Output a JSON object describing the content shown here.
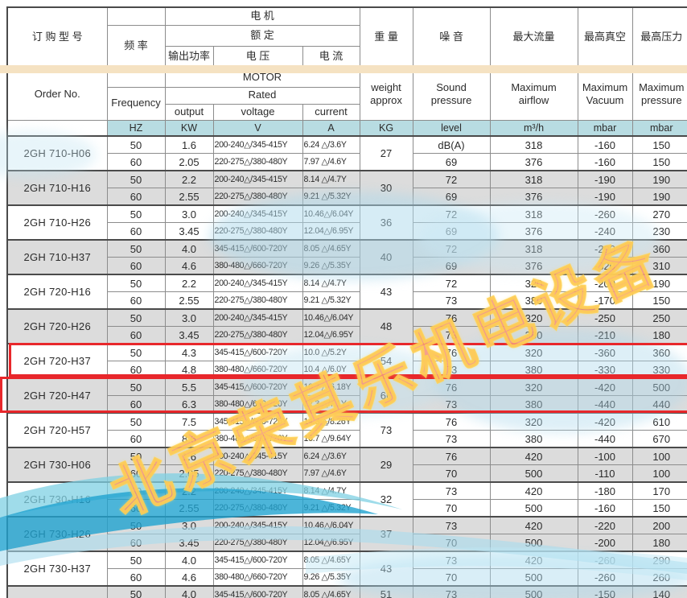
{
  "header": {
    "cn": {
      "order": "订 购 型 号",
      "freq": "频  率",
      "motor": "电   机",
      "rated": "额  定",
      "output": "输出功率",
      "voltage": "电  压",
      "current": "电  流",
      "weight": "重  量",
      "noise": "噪  音",
      "airflow": "最大流量",
      "vacuum": "最高真空",
      "pressure": "最高压力"
    },
    "en": {
      "order": "Order No.",
      "freq": "Frequency",
      "motor": "MOTOR",
      "rated": "Rated",
      "output": "output",
      "voltage": "voltage",
      "current": "current",
      "weight": "weight\napprox",
      "noise": "Sound\npressure",
      "airflow": "Maximum\nairflow",
      "vacuum": "Maximum\nVacuum",
      "pressure": "Maximum\npressure"
    },
    "units": {
      "hz": "HZ",
      "kw": "KW",
      "v": "V",
      "a": "A",
      "kg": "KG",
      "level": "level",
      "flow": "m³/h",
      "vacuum": "mbar",
      "pressure": "mbar"
    }
  },
  "models": [
    {
      "order": "2GH 710-H06",
      "weight": "27",
      "shaded": false,
      "highlighted": false,
      "rows": [
        {
          "hz": "50",
          "kw": "1.6",
          "voltage": "200-240△/345-415Y",
          "current": "6.24 △/3.6Y",
          "sound": "dB(A)",
          "airflow": "318",
          "vacuum": "-160",
          "pressure": "150"
        },
        {
          "hz": "60",
          "kw": "2.05",
          "voltage": "220-275△/380-480Y",
          "current": "7.97 △/4.6Y",
          "sound": "69",
          "airflow": "376",
          "vacuum": "-160",
          "pressure": "150"
        }
      ]
    },
    {
      "order": "2GH 710-H16",
      "weight": "30",
      "shaded": true,
      "highlighted": false,
      "rows": [
        {
          "hz": "50",
          "kw": "2.2",
          "voltage": "200-240△/345-415Y",
          "current": "8.14 △/4.7Y",
          "sound": "72",
          "airflow": "318",
          "vacuum": "-190",
          "pressure": "190"
        },
        {
          "hz": "60",
          "kw": "2.55",
          "voltage": "220-275△/380-480Y",
          "current": "9.21 △/5.32Y",
          "sound": "69",
          "airflow": "376",
          "vacuum": "-190",
          "pressure": "190"
        }
      ]
    },
    {
      "order": "2GH 710-H26",
      "weight": "36",
      "shaded": false,
      "highlighted": false,
      "rows": [
        {
          "hz": "50",
          "kw": "3.0",
          "voltage": "200-240△/345-415Y",
          "current": "10.46△/6.04Y",
          "sound": "72",
          "airflow": "318",
          "vacuum": "-260",
          "pressure": "270"
        },
        {
          "hz": "60",
          "kw": "3.45",
          "voltage": "220-275△/380-480Y",
          "current": "12.04△/6.95Y",
          "sound": "69",
          "airflow": "376",
          "vacuum": "-240",
          "pressure": "230"
        }
      ]
    },
    {
      "order": "2GH 710-H37",
      "weight": "40",
      "shaded": true,
      "highlighted": false,
      "rows": [
        {
          "hz": "50",
          "kw": "4.0",
          "voltage": "345-415△/600-720Y",
          "current": "8.05 △/4.65Y",
          "sound": "72",
          "airflow": "318",
          "vacuum": "-290",
          "pressure": "360"
        },
        {
          "hz": "60",
          "kw": "4.6",
          "voltage": "380-480△/660-720Y",
          "current": "9.26 △/5.35Y",
          "sound": "69",
          "airflow": "376",
          "vacuum": "-320",
          "pressure": "310"
        }
      ]
    },
    {
      "order": "2GH 720-H16",
      "weight": "43",
      "shaded": false,
      "highlighted": false,
      "rows": [
        {
          "hz": "50",
          "kw": "2.2",
          "voltage": "200-240△/345-415Y",
          "current": "8.14 △/4.7Y",
          "sound": "72",
          "airflow": "320",
          "vacuum": "-200",
          "pressure": "190"
        },
        {
          "hz": "60",
          "kw": "2.55",
          "voltage": "220-275△/380-480Y",
          "current": "9.21 △/5.32Y",
          "sound": "73",
          "airflow": "380",
          "vacuum": "-170",
          "pressure": "150"
        }
      ]
    },
    {
      "order": "2GH 720-H26",
      "weight": "48",
      "shaded": true,
      "highlighted": false,
      "rows": [
        {
          "hz": "50",
          "kw": "3.0",
          "voltage": "200-240△/345-415Y",
          "current": "10.46△/6.04Y",
          "sound": "76",
          "airflow": "320",
          "vacuum": "-250",
          "pressure": "250"
        },
        {
          "hz": "60",
          "kw": "3.45",
          "voltage": "220-275△/380-480Y",
          "current": "12.04△/6.95Y",
          "sound": "73",
          "airflow": "380",
          "vacuum": "-210",
          "pressure": "180"
        }
      ]
    },
    {
      "order": "2GH 720-H37",
      "weight": "54",
      "shaded": false,
      "highlighted": true,
      "rows": [
        {
          "hz": "50",
          "kw": "4.3",
          "voltage": "345-415△/600-720Y",
          "current": "10.0 △/5.2Y",
          "sound": "76",
          "airflow": "320",
          "vacuum": "-360",
          "pressure": "360"
        },
        {
          "hz": "60",
          "kw": "4.8",
          "voltage": "380-480△/660-720Y",
          "current": "10.4 △/6.0Y",
          "sound": "73",
          "airflow": "380",
          "vacuum": "-330",
          "pressure": "330"
        }
      ]
    },
    {
      "order": "2GH 720-H47",
      "weight": "66",
      "shaded": true,
      "highlighted": true,
      "rows": [
        {
          "hz": "50",
          "kw": "5.5",
          "voltage": "345-415△/600-720Y",
          "current": "10.7 △/6.18Y",
          "sound": "76",
          "airflow": "320",
          "vacuum": "-420",
          "pressure": "500"
        },
        {
          "hz": "60",
          "kw": "6.3",
          "voltage": "380-480△/660-720Y",
          "current": "12.3 △/7.1Y",
          "sound": "73",
          "airflow": "380",
          "vacuum": "-440",
          "pressure": "440"
        }
      ]
    },
    {
      "order": "2GH 720-H57",
      "weight": "73",
      "shaded": false,
      "highlighted": false,
      "rows": [
        {
          "hz": "50",
          "kw": "7.5",
          "voltage": "345-415△/600-720Y",
          "current": "14.3 △/8.26Y",
          "sound": "76",
          "airflow": "320",
          "vacuum": "-420",
          "pressure": "610"
        },
        {
          "hz": "60",
          "kw": "8.6",
          "voltage": "380-480△/660-720Y",
          "current": "16.7 △/9.64Y",
          "sound": "73",
          "airflow": "380",
          "vacuum": "-440",
          "pressure": "670"
        }
      ]
    },
    {
      "order": "2GH 730-H06",
      "weight": "29",
      "shaded": true,
      "highlighted": false,
      "rows": [
        {
          "hz": "50",
          "kw": "1.6",
          "voltage": "200-240△/345-415Y",
          "current": "6.24 △/3.6Y",
          "sound": "76",
          "airflow": "420",
          "vacuum": "-100",
          "pressure": "100"
        },
        {
          "hz": "60",
          "kw": "2.05",
          "voltage": "220-275△/380-480Y",
          "current": "7.97 △/4.6Y",
          "sound": "70",
          "airflow": "500",
          "vacuum": "-110",
          "pressure": "100"
        }
      ]
    },
    {
      "order": "2GH 730-H16",
      "weight": "32",
      "shaded": false,
      "highlighted": false,
      "rows": [
        {
          "hz": "50",
          "kw": "2.2",
          "voltage": "200-240△/345-415Y",
          "current": "8.14 △/4.7Y",
          "sound": "73",
          "airflow": "420",
          "vacuum": "-180",
          "pressure": "170"
        },
        {
          "hz": "60",
          "kw": "2.55",
          "voltage": "220-275△/380-480Y",
          "current": "9.21 △/5.32Y",
          "sound": "70",
          "airflow": "500",
          "vacuum": "-160",
          "pressure": "150"
        }
      ]
    },
    {
      "order": "2GH 730-H26",
      "weight": "37",
      "shaded": true,
      "highlighted": false,
      "rows": [
        {
          "hz": "50",
          "kw": "3.0",
          "voltage": "200-240△/345-415Y",
          "current": "10.46△/6.04Y",
          "sound": "73",
          "airflow": "420",
          "vacuum": "-220",
          "pressure": "200"
        },
        {
          "hz": "60",
          "kw": "3.45",
          "voltage": "220-275△/380-480Y",
          "current": "12.04△/6.95Y",
          "sound": "70",
          "airflow": "500",
          "vacuum": "-200",
          "pressure": "180"
        }
      ]
    },
    {
      "order": "2GH 730-H37",
      "weight": "43",
      "shaded": false,
      "highlighted": false,
      "rows": [
        {
          "hz": "50",
          "kw": "4.0",
          "voltage": "345-415△/600-720Y",
          "current": "8.05 △/4.65Y",
          "sound": "73",
          "airflow": "420",
          "vacuum": "-260",
          "pressure": "290"
        },
        {
          "hz": "60",
          "kw": "4.6",
          "voltage": "380-480△/660-720Y",
          "current": "9.26 △/5.35Y",
          "sound": "70",
          "airflow": "500",
          "vacuum": "-260",
          "pressure": "260"
        }
      ]
    },
    {
      "order": "",
      "weight": "51",
      "shaded": true,
      "highlighted": false,
      "rows": [
        {
          "hz": "50",
          "kw": "4.0",
          "voltage": "345-415△/600-720Y",
          "current": "8.05 △/4.65Y",
          "sound": "73",
          "airflow": "500",
          "vacuum": "-150",
          "pressure": "140"
        }
      ]
    }
  ],
  "watermark": {
    "text": "北京荣其乐机电设备"
  },
  "colors": {
    "units_teal": "#b8dce2",
    "row_gray": "#dcdcdc",
    "highlight_red": "#e8272b",
    "band_beige": "#f5e2c2",
    "wave_cyan": "#1fa3cf"
  }
}
